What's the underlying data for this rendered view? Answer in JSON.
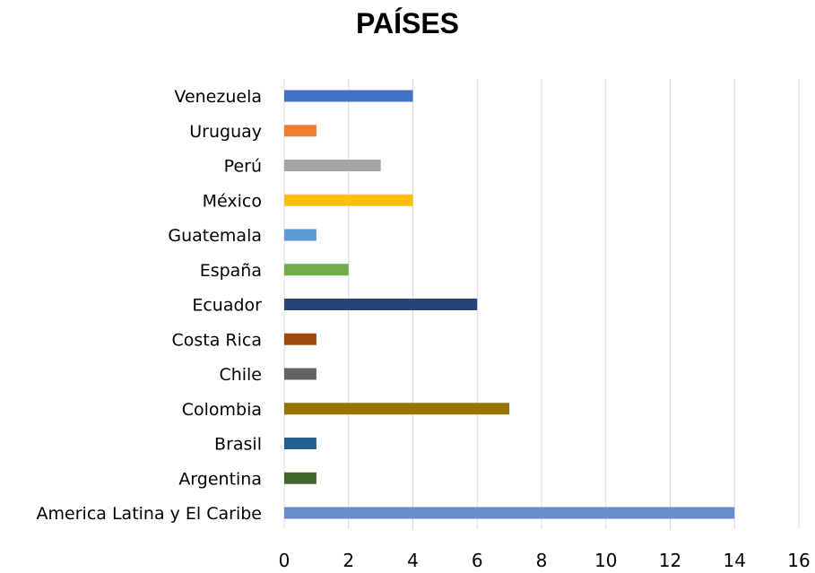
{
  "chart_data": {
    "type": "bar",
    "orientation": "horizontal",
    "title": "PAÍSES",
    "xlabel": "",
    "ylabel": "",
    "xlim": [
      0,
      16
    ],
    "x_ticks": [
      0,
      2,
      4,
      6,
      8,
      10,
      12,
      14,
      16
    ],
    "grid": "vertical",
    "legend": "none",
    "categories": [
      "Venezuela",
      "Uruguay",
      "Perú",
      "México",
      "Guatemala",
      "España",
      "Ecuador",
      "Costa Rica",
      "Chile",
      "Colombia",
      "Brasil",
      "Argentina",
      "America Latina y El Caribe"
    ],
    "values": [
      4,
      1,
      3,
      4,
      1,
      2,
      6,
      1,
      1,
      7,
      1,
      1,
      14
    ],
    "colors": [
      "#4472c4",
      "#ed7d31",
      "#a5a5a5",
      "#ffc000",
      "#5b9bd5",
      "#70ad47",
      "#264478",
      "#9e480e",
      "#636363",
      "#997300",
      "#255e91",
      "#43682b",
      "#698ed0"
    ]
  }
}
